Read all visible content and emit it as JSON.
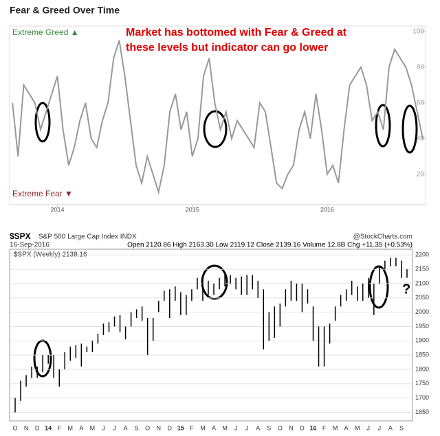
{
  "chart_data": [
    {
      "type": "line",
      "title": "Fear & Greed Over Time",
      "annotation": [
        "Market has bottomed with Fear & Greed at",
        "these levels but indicator can go lower"
      ],
      "upper_label": "Extreme Greed ▲",
      "lower_label": "Extreme Fear ▼",
      "categories": [
        null,
        null,
        null,
        null,
        null,
        null,
        null,
        null,
        "2014",
        null,
        null,
        null,
        null,
        null,
        null,
        null,
        null,
        null,
        null,
        null,
        null,
        null,
        null,
        null,
        null,
        null,
        null,
        null,
        null,
        null,
        null,
        null,
        "2015",
        null,
        null,
        null,
        null,
        null,
        null,
        null,
        null,
        null,
        null,
        null,
        null,
        null,
        null,
        null,
        null,
        null,
        null,
        null,
        null,
        null,
        null,
        null,
        "2016",
        null,
        null,
        null,
        null,
        null,
        null,
        null,
        null,
        null,
        null,
        null,
        null,
        null,
        null,
        null,
        null,
        null
      ],
      "values": [
        60,
        30,
        70,
        65,
        60,
        45,
        55,
        65,
        75,
        45,
        25,
        35,
        50,
        60,
        40,
        35,
        50,
        60,
        85,
        95,
        75,
        50,
        25,
        15,
        30,
        20,
        10,
        25,
        55,
        65,
        45,
        55,
        30,
        40,
        75,
        85,
        60,
        45,
        55,
        40,
        50,
        45,
        40,
        35,
        60,
        55,
        35,
        15,
        12,
        20,
        25,
        45,
        55,
        40,
        65,
        45,
        20,
        25,
        15,
        45,
        70,
        75,
        80,
        70,
        50,
        55,
        45,
        80,
        90,
        85,
        80,
        70,
        55,
        40
      ],
      "color": "#999999",
      "ylim": [
        3,
        103
      ],
      "yticks": [
        20,
        40,
        60,
        80,
        100
      ]
    },
    {
      "type": "range_bar",
      "title": "$SPX",
      "subtitle": "S&P 500 Large Cap Index INDX",
      "source": "@StockCharts.com",
      "date": "16-Sep-2016",
      "quote": "Open 2120.86  High 2163.30  Low 2119.12  Close 2139.16  Volume 12.8B  Chg +11.35 (+0.53%)",
      "legend": "$SPX (Weekly) 2139.16",
      "annotation": "?",
      "categories": [
        "O",
        null,
        "N",
        null,
        "D",
        null,
        "14",
        null,
        "F",
        null,
        "M",
        null,
        "A",
        null,
        "M",
        null,
        "J",
        null,
        "J",
        null,
        "A",
        null,
        "S",
        null,
        "O",
        null,
        "N",
        null,
        "D",
        null,
        "15",
        null,
        "F",
        null,
        "M",
        null,
        "A",
        null,
        "M",
        null,
        "J",
        null,
        "J",
        null,
        "A",
        null,
        "S",
        null,
        "O",
        null,
        "N",
        null,
        "D",
        null,
        "16",
        null,
        "F",
        null,
        "M",
        null,
        "A",
        null,
        "M",
        null,
        "J",
        null,
        "J",
        null,
        "A",
        null,
        "S",
        null
      ],
      "high": [
        1700,
        1760,
        1780,
        1810,
        1810,
        1850,
        1850,
        1850,
        1800,
        1860,
        1880,
        1885,
        1890,
        1880,
        1900,
        1925,
        1960,
        1965,
        1985,
        1990,
        1950,
        2000,
        2010,
        2020,
        1980,
        1980,
        2040,
        2075,
        2080,
        2090,
        2070,
        2060,
        2080,
        2120,
        2120,
        2110,
        2100,
        2120,
        2135,
        2130,
        2120,
        2125,
        2130,
        2130,
        2110,
        2080,
        2000,
        2020,
        2030,
        2080,
        2110,
        2100,
        2100,
        2080,
        2020,
        1950,
        1950,
        1960,
        2020,
        2060,
        2080,
        2110,
        2090,
        2100,
        2120,
        2100,
        2160,
        2180,
        2190,
        2190,
        2180,
        2150
      ],
      "low": [
        1650,
        1690,
        1740,
        1770,
        1770,
        1790,
        1820,
        1770,
        1740,
        1800,
        1830,
        1840,
        1810,
        1860,
        1860,
        1890,
        1920,
        1930,
        1950,
        1930,
        1905,
        1950,
        1980,
        1970,
        1850,
        1900,
        2000,
        2040,
        1980,
        2040,
        1990,
        1990,
        2040,
        2080,
        2040,
        2060,
        2060,
        2080,
        2090,
        2100,
        2080,
        2060,
        2060,
        2080,
        2050,
        1870,
        1900,
        1910,
        1950,
        2020,
        2040,
        2040,
        2000,
        2030,
        1900,
        1810,
        1810,
        1890,
        1970,
        2020,
        2040,
        2060,
        2040,
        2040,
        2050,
        1990,
        2100,
        2150,
        2160,
        2160,
        2120,
        2120
      ],
      "color": "#000000",
      "ylim": [
        1620,
        2220
      ],
      "yticks": [
        1650,
        1700,
        1750,
        1800,
        1850,
        1900,
        1950,
        2000,
        2050,
        2100,
        2150,
        2200
      ],
      "grid": true
    }
  ]
}
